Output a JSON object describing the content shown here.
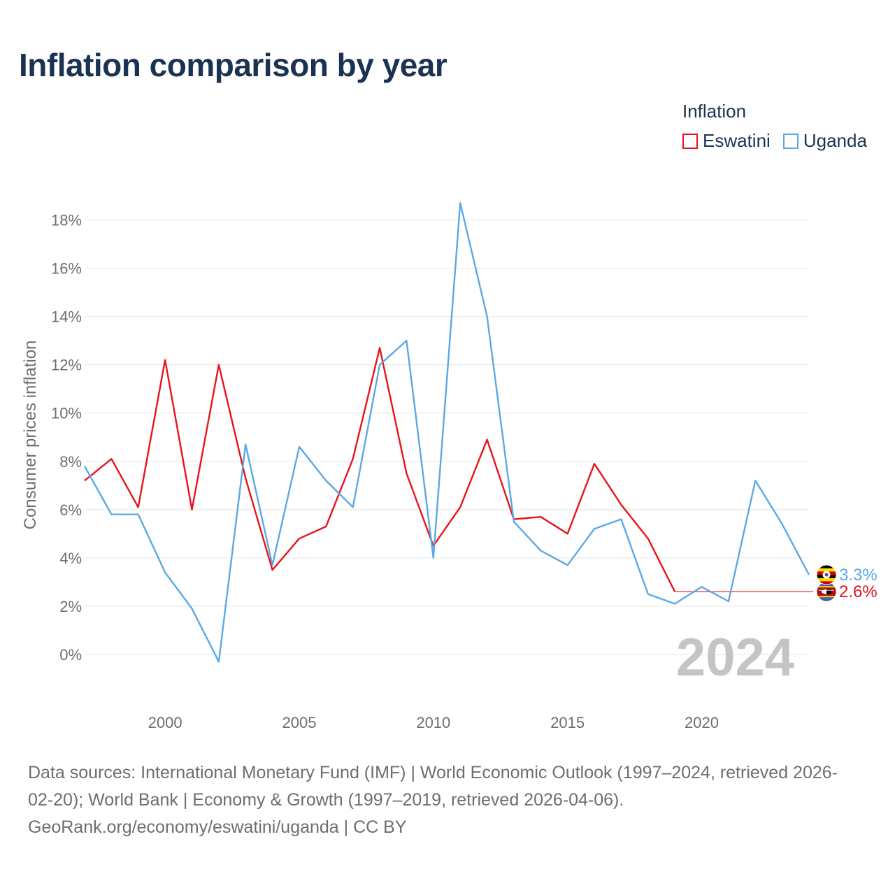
{
  "title": "Inflation comparison by year",
  "legend": {
    "title": "Inflation",
    "items": [
      {
        "name": "Eswatini",
        "color": "#e8141b"
      },
      {
        "name": "Uganda",
        "color": "#5aa9e6"
      }
    ]
  },
  "chart_data": {
    "type": "line",
    "title": "Inflation comparison by year",
    "xlabel": "",
    "ylabel": "Consumer prices inflation",
    "xlim": [
      1997,
      2024
    ],
    "ylim": [
      -2,
      19
    ],
    "x_ticks": [
      2000,
      2005,
      2010,
      2015,
      2020
    ],
    "y_ticks": [
      0,
      2,
      4,
      6,
      8,
      10,
      12,
      14,
      16,
      18
    ],
    "y_tick_labels": [
      "0%",
      "2%",
      "4%",
      "6%",
      "8%",
      "10%",
      "12%",
      "14%",
      "16%",
      "18%"
    ],
    "grid": true,
    "legend_position": "top-right",
    "year_watermark": "2024",
    "series": [
      {
        "name": "Eswatini",
        "color": "#e8141b",
        "x": [
          1997,
          1998,
          1999,
          2000,
          2001,
          2002,
          2003,
          2004,
          2005,
          2006,
          2007,
          2008,
          2009,
          2010,
          2011,
          2012,
          2013,
          2014,
          2015,
          2016,
          2017,
          2018,
          2019
        ],
        "values": [
          7.2,
          8.1,
          6.1,
          12.2,
          6.0,
          12.0,
          7.3,
          3.5,
          4.8,
          5.3,
          8.1,
          12.7,
          7.5,
          4.5,
          6.1,
          8.9,
          5.6,
          5.7,
          5.0,
          7.9,
          6.2,
          4.8,
          2.6
        ],
        "carried_to": 2024,
        "end_label": "2.6%"
      },
      {
        "name": "Uganda",
        "color": "#5aa9e6",
        "x": [
          1997,
          1998,
          1999,
          2000,
          2001,
          2002,
          2003,
          2004,
          2005,
          2006,
          2007,
          2008,
          2009,
          2010,
          2011,
          2012,
          2013,
          2014,
          2015,
          2016,
          2017,
          2018,
          2019,
          2020,
          2021,
          2022,
          2023,
          2024
        ],
        "values": [
          7.8,
          5.8,
          5.8,
          3.4,
          1.9,
          -0.3,
          8.7,
          3.7,
          8.6,
          7.2,
          6.1,
          12.0,
          13.0,
          4.0,
          18.7,
          14.0,
          5.5,
          4.3,
          3.7,
          5.2,
          5.6,
          2.5,
          2.1,
          2.8,
          2.2,
          7.2,
          5.4,
          3.3
        ],
        "end_label": "3.3%"
      }
    ]
  },
  "footer": {
    "line1": "Data sources: International Monetary Fund (IMF) | World Economic Outlook (1997–2024, retrieved 2026-",
    "line2": "02-20); World Bank | Economy & Growth (1997–2019, retrieved 2026-04-06).",
    "line3": "GeoRank.org/economy/eswatini/uganda | CC BY"
  }
}
